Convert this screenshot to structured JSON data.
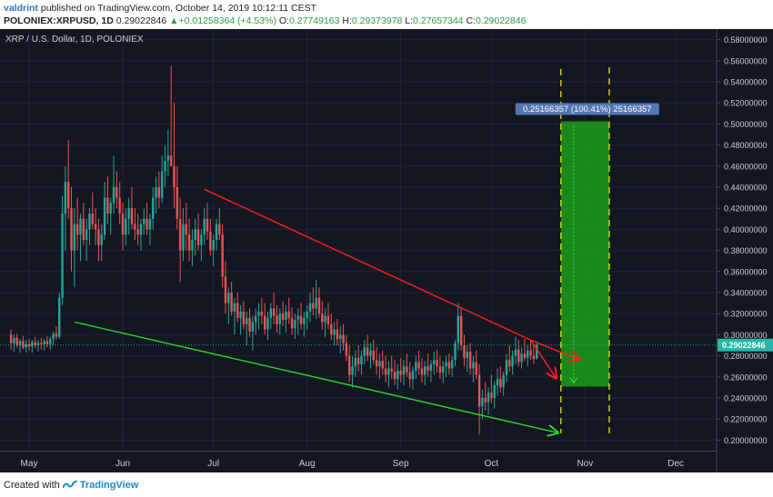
{
  "header": {
    "author": "valdrint",
    "published_text": " published on TradingView.com, October 14, 2019 10:12:11 CEST",
    "symbol": "POLONIEX:XRPUSD, 1D",
    "price": "0.29022846",
    "change": "+0.01258364 (+4.53%)",
    "open_label": "O:",
    "open": "0.27749163",
    "high_label": "H:",
    "high": "0.29373978",
    "low_label": "L:",
    "low": "0.27657344",
    "close_label": "C:",
    "close": "0.29022846"
  },
  "footer": {
    "created_with": "Created with",
    "brand": "TradingView"
  },
  "colors": {
    "background": "#131722",
    "grid": "#1e2433",
    "up": "#26a69a",
    "down": "#ef5350",
    "resistance": "#ff1e1e",
    "support": "#2bd62b",
    "target_zone": "#1a9a1a",
    "target_lines": "#e8e01a",
    "price_tag": "#2bb5a9",
    "measure_label": "#5576b3"
  },
  "chart_data": {
    "type": "candlestick",
    "title": "XRP / U.S. Dollar, 1D, POLONIEX",
    "x_labels": [
      "May",
      "Jun",
      "Jul",
      "Aug",
      "Sep",
      "Oct",
      "Nov",
      "Dec"
    ],
    "ylim": [
      0.19,
      0.59
    ],
    "y_ticks": [
      "0.58000000",
      "0.56000000",
      "0.54000000",
      "0.52000000",
      "0.50000000",
      "0.48000000",
      "0.46000000",
      "0.44000000",
      "0.42000000",
      "0.40000000",
      "0.38000000",
      "0.36000000",
      "0.34000000",
      "0.32000000",
      "0.30000000",
      "0.28000000",
      "0.26000000",
      "0.24000000",
      "0.22000000",
      "0.20000000"
    ],
    "y_tick_values": [
      0.58,
      0.56,
      0.54,
      0.52,
      0.5,
      0.48,
      0.46,
      0.44,
      0.42,
      0.4,
      0.38,
      0.36,
      0.34,
      0.32,
      0.3,
      0.28,
      0.26,
      0.24,
      0.22,
      0.2
    ],
    "last_price": 0.29022846,
    "last_price_label": "0.29022846",
    "candles_start": "2019-04-25",
    "candles": [
      [
        0.3,
        0.305,
        0.286,
        0.292
      ],
      [
        0.292,
        0.3,
        0.284,
        0.297
      ],
      [
        0.297,
        0.301,
        0.288,
        0.29
      ],
      [
        0.29,
        0.296,
        0.283,
        0.294
      ],
      [
        0.294,
        0.299,
        0.286,
        0.288
      ],
      [
        0.288,
        0.295,
        0.283,
        0.291
      ],
      [
        0.291,
        0.296,
        0.285,
        0.289
      ],
      [
        0.289,
        0.295,
        0.283,
        0.293
      ],
      [
        0.293,
        0.298,
        0.287,
        0.29
      ],
      [
        0.29,
        0.295,
        0.284,
        0.292
      ],
      [
        0.292,
        0.297,
        0.286,
        0.291
      ],
      [
        0.291,
        0.296,
        0.285,
        0.294
      ],
      [
        0.294,
        0.299,
        0.288,
        0.291
      ],
      [
        0.291,
        0.298,
        0.286,
        0.296
      ],
      [
        0.296,
        0.303,
        0.29,
        0.301
      ],
      [
        0.301,
        0.308,
        0.295,
        0.298
      ],
      [
        0.298,
        0.34,
        0.296,
        0.335
      ],
      [
        0.335,
        0.432,
        0.328,
        0.415
      ],
      [
        0.415,
        0.46,
        0.38,
        0.445
      ],
      [
        0.445,
        0.485,
        0.41,
        0.42
      ],
      [
        0.42,
        0.44,
        0.36,
        0.38
      ],
      [
        0.38,
        0.42,
        0.345,
        0.405
      ],
      [
        0.405,
        0.43,
        0.38,
        0.395
      ],
      [
        0.395,
        0.415,
        0.37,
        0.41
      ],
      [
        0.41,
        0.425,
        0.385,
        0.39
      ],
      [
        0.39,
        0.41,
        0.37,
        0.4
      ],
      [
        0.4,
        0.42,
        0.385,
        0.415
      ],
      [
        0.415,
        0.435,
        0.4,
        0.405
      ],
      [
        0.405,
        0.42,
        0.385,
        0.4
      ],
      [
        0.4,
        0.41,
        0.37,
        0.385
      ],
      [
        0.385,
        0.405,
        0.37,
        0.395
      ],
      [
        0.395,
        0.445,
        0.39,
        0.43
      ],
      [
        0.43,
        0.45,
        0.405,
        0.415
      ],
      [
        0.415,
        0.43,
        0.395,
        0.425
      ],
      [
        0.425,
        0.47,
        0.415,
        0.44
      ],
      [
        0.44,
        0.455,
        0.42,
        0.43
      ],
      [
        0.43,
        0.445,
        0.405,
        0.415
      ],
      [
        0.415,
        0.425,
        0.38,
        0.395
      ],
      [
        0.395,
        0.42,
        0.385,
        0.41
      ],
      [
        0.41,
        0.43,
        0.395,
        0.42
      ],
      [
        0.42,
        0.44,
        0.4,
        0.405
      ],
      [
        0.405,
        0.42,
        0.39,
        0.4
      ],
      [
        0.4,
        0.415,
        0.385,
        0.395
      ],
      [
        0.395,
        0.41,
        0.38,
        0.405
      ],
      [
        0.405,
        0.42,
        0.395,
        0.41
      ],
      [
        0.41,
        0.425,
        0.395,
        0.4
      ],
      [
        0.4,
        0.415,
        0.385,
        0.41
      ],
      [
        0.41,
        0.44,
        0.4,
        0.43
      ],
      [
        0.43,
        0.45,
        0.415,
        0.44
      ],
      [
        0.44,
        0.455,
        0.42,
        0.43
      ],
      [
        0.43,
        0.47,
        0.425,
        0.455
      ],
      [
        0.455,
        0.48,
        0.44,
        0.465
      ],
      [
        0.465,
        0.495,
        0.45,
        0.47
      ],
      [
        0.47,
        0.555,
        0.46,
        0.46
      ],
      [
        0.46,
        0.52,
        0.42,
        0.44
      ],
      [
        0.44,
        0.46,
        0.4,
        0.41
      ],
      [
        0.41,
        0.43,
        0.35,
        0.38
      ],
      [
        0.38,
        0.42,
        0.37,
        0.405
      ],
      [
        0.405,
        0.425,
        0.38,
        0.395
      ],
      [
        0.395,
        0.41,
        0.37,
        0.38
      ],
      [
        0.38,
        0.4,
        0.365,
        0.39
      ],
      [
        0.39,
        0.41,
        0.375,
        0.4
      ],
      [
        0.4,
        0.415,
        0.38,
        0.385
      ],
      [
        0.385,
        0.4,
        0.37,
        0.395
      ],
      [
        0.395,
        0.42,
        0.385,
        0.41
      ],
      [
        0.41,
        0.425,
        0.39,
        0.398
      ],
      [
        0.398,
        0.41,
        0.375,
        0.38
      ],
      [
        0.38,
        0.395,
        0.365,
        0.39
      ],
      [
        0.39,
        0.41,
        0.38,
        0.405
      ],
      [
        0.405,
        0.42,
        0.39,
        0.395
      ],
      [
        0.395,
        0.405,
        0.345,
        0.355
      ],
      [
        0.355,
        0.37,
        0.32,
        0.33
      ],
      [
        0.33,
        0.345,
        0.31,
        0.34
      ],
      [
        0.34,
        0.35,
        0.318,
        0.322
      ],
      [
        0.322,
        0.335,
        0.3,
        0.33
      ],
      [
        0.33,
        0.34,
        0.312,
        0.316
      ],
      [
        0.316,
        0.328,
        0.3,
        0.322
      ],
      [
        0.322,
        0.332,
        0.305,
        0.31
      ],
      [
        0.31,
        0.322,
        0.29,
        0.316
      ],
      [
        0.316,
        0.325,
        0.298,
        0.303
      ],
      [
        0.303,
        0.318,
        0.285,
        0.312
      ],
      [
        0.312,
        0.325,
        0.3,
        0.318
      ],
      [
        0.318,
        0.33,
        0.305,
        0.322
      ],
      [
        0.322,
        0.335,
        0.31,
        0.318
      ],
      [
        0.318,
        0.33,
        0.3,
        0.305
      ],
      [
        0.305,
        0.322,
        0.295,
        0.316
      ],
      [
        0.316,
        0.33,
        0.305,
        0.325
      ],
      [
        0.325,
        0.34,
        0.31,
        0.318
      ],
      [
        0.318,
        0.328,
        0.302,
        0.31
      ],
      [
        0.31,
        0.325,
        0.3,
        0.32
      ],
      [
        0.32,
        0.332,
        0.308,
        0.314
      ],
      [
        0.314,
        0.328,
        0.302,
        0.322
      ],
      [
        0.322,
        0.335,
        0.31,
        0.316
      ],
      [
        0.316,
        0.326,
        0.3,
        0.306
      ],
      [
        0.306,
        0.32,
        0.296,
        0.314
      ],
      [
        0.314,
        0.325,
        0.3,
        0.318
      ],
      [
        0.318,
        0.33,
        0.305,
        0.31
      ],
      [
        0.31,
        0.322,
        0.298,
        0.316
      ],
      [
        0.316,
        0.328,
        0.305,
        0.322
      ],
      [
        0.322,
        0.34,
        0.312,
        0.33
      ],
      [
        0.33,
        0.345,
        0.318,
        0.325
      ],
      [
        0.325,
        0.352,
        0.315,
        0.335
      ],
      [
        0.335,
        0.345,
        0.316,
        0.32
      ],
      [
        0.32,
        0.332,
        0.305,
        0.312
      ],
      [
        0.312,
        0.325,
        0.298,
        0.318
      ],
      [
        0.318,
        0.33,
        0.305,
        0.31
      ],
      [
        0.31,
        0.32,
        0.295,
        0.3
      ],
      [
        0.3,
        0.312,
        0.29,
        0.305
      ],
      [
        0.305,
        0.315,
        0.29,
        0.296
      ],
      [
        0.296,
        0.308,
        0.282,
        0.3
      ],
      [
        0.3,
        0.31,
        0.285,
        0.292
      ],
      [
        0.292,
        0.3,
        0.275,
        0.28
      ],
      [
        0.28,
        0.29,
        0.255,
        0.262
      ],
      [
        0.262,
        0.28,
        0.25,
        0.27
      ],
      [
        0.27,
        0.285,
        0.26,
        0.278
      ],
      [
        0.278,
        0.29,
        0.265,
        0.272
      ],
      [
        0.272,
        0.285,
        0.262,
        0.28
      ],
      [
        0.28,
        0.295,
        0.272,
        0.288
      ],
      [
        0.288,
        0.3,
        0.275,
        0.28
      ],
      [
        0.28,
        0.292,
        0.268,
        0.285
      ],
      [
        0.285,
        0.295,
        0.272,
        0.276
      ],
      [
        0.276,
        0.288,
        0.262,
        0.27
      ],
      [
        0.27,
        0.282,
        0.258,
        0.275
      ],
      [
        0.275,
        0.285,
        0.262,
        0.268
      ],
      [
        0.268,
        0.28,
        0.255,
        0.262
      ],
      [
        0.262,
        0.275,
        0.25,
        0.268
      ],
      [
        0.268,
        0.28,
        0.258,
        0.265
      ],
      [
        0.265,
        0.276,
        0.252,
        0.258
      ],
      [
        0.258,
        0.272,
        0.248,
        0.266
      ],
      [
        0.266,
        0.278,
        0.255,
        0.262
      ],
      [
        0.262,
        0.276,
        0.252,
        0.27
      ],
      [
        0.27,
        0.282,
        0.26,
        0.264
      ],
      [
        0.264,
        0.274,
        0.25,
        0.258
      ],
      [
        0.258,
        0.27,
        0.248,
        0.266
      ],
      [
        0.266,
        0.28,
        0.258,
        0.274
      ],
      [
        0.274,
        0.285,
        0.262,
        0.268
      ],
      [
        0.268,
        0.278,
        0.255,
        0.262
      ],
      [
        0.262,
        0.275,
        0.252,
        0.27
      ],
      [
        0.27,
        0.282,
        0.26,
        0.266
      ],
      [
        0.266,
        0.276,
        0.255,
        0.272
      ],
      [
        0.272,
        0.284,
        0.262,
        0.276
      ],
      [
        0.276,
        0.286,
        0.264,
        0.27
      ],
      [
        0.27,
        0.28,
        0.258,
        0.264
      ],
      [
        0.264,
        0.275,
        0.254,
        0.27
      ],
      [
        0.27,
        0.28,
        0.26,
        0.274
      ],
      [
        0.274,
        0.282,
        0.262,
        0.268
      ],
      [
        0.268,
        0.28,
        0.26,
        0.276
      ],
      [
        0.276,
        0.295,
        0.27,
        0.292
      ],
      [
        0.292,
        0.33,
        0.285,
        0.318
      ],
      [
        0.318,
        0.325,
        0.285,
        0.29
      ],
      [
        0.29,
        0.3,
        0.27,
        0.278
      ],
      [
        0.278,
        0.29,
        0.265,
        0.284
      ],
      [
        0.284,
        0.292,
        0.262,
        0.268
      ],
      [
        0.268,
        0.28,
        0.255,
        0.274
      ],
      [
        0.274,
        0.285,
        0.258,
        0.262
      ],
      [
        0.262,
        0.272,
        0.205,
        0.232
      ],
      [
        0.232,
        0.248,
        0.22,
        0.24
      ],
      [
        0.24,
        0.255,
        0.228,
        0.236
      ],
      [
        0.236,
        0.25,
        0.224,
        0.245
      ],
      [
        0.245,
        0.262,
        0.235,
        0.24
      ],
      [
        0.24,
        0.256,
        0.23,
        0.252
      ],
      [
        0.252,
        0.268,
        0.242,
        0.258
      ],
      [
        0.258,
        0.27,
        0.245,
        0.25
      ],
      [
        0.25,
        0.265,
        0.242,
        0.262
      ],
      [
        0.262,
        0.282,
        0.255,
        0.276
      ],
      [
        0.276,
        0.29,
        0.265,
        0.27
      ],
      [
        0.27,
        0.285,
        0.262,
        0.28
      ],
      [
        0.28,
        0.298,
        0.272,
        0.286
      ],
      [
        0.286,
        0.295,
        0.27,
        0.274
      ],
      [
        0.274,
        0.288,
        0.268,
        0.282
      ],
      [
        0.282,
        0.296,
        0.275,
        0.278
      ],
      [
        0.278,
        0.29,
        0.27,
        0.285
      ],
      [
        0.285,
        0.295,
        0.276,
        0.28
      ],
      [
        0.28,
        0.29,
        0.272,
        0.277
      ],
      [
        0.2775,
        0.2937,
        0.2766,
        0.2902
      ]
    ],
    "resistance_line": {
      "from": [
        "2019-06-28",
        0.438
      ],
      "to": [
        "2019-10-14",
        0.295
      ]
    },
    "support_line": {
      "from": [
        "2019-05-16",
        0.312
      ],
      "to": [
        "2019-10-23",
        0.207
      ]
    },
    "target_zone": {
      "x_from": "2019-10-24",
      "x_to": "2019-11-09",
      "y_from": 0.2508,
      "y_to": 0.5025
    },
    "measure_label": "0.25166357 (100.41%) 25166357"
  }
}
